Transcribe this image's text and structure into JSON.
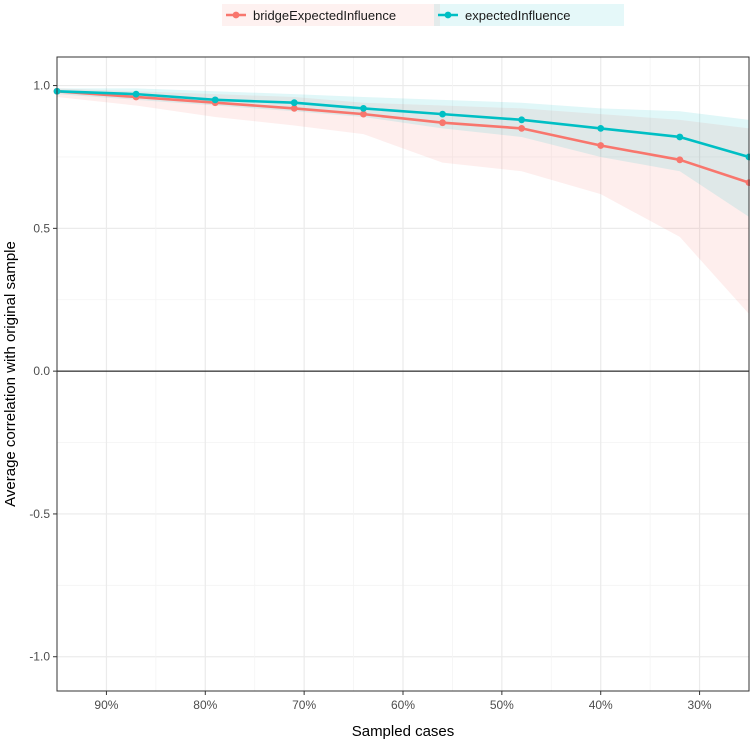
{
  "chart_data": {
    "type": "line",
    "xlabel": "Sampled cases",
    "ylabel": "Average correlation with original sample",
    "xlim": [
      0.95,
      0.25
    ],
    "ylim": [
      -1.12,
      1.1
    ],
    "x_ticks": [
      0.9,
      0.8,
      0.7,
      0.6,
      0.5,
      0.4,
      0.3
    ],
    "x_tick_labels": [
      "90%",
      "80%",
      "70%",
      "60%",
      "50%",
      "40%",
      "30%"
    ],
    "y_ticks": [
      1.0,
      0.5,
      0.0,
      -0.5,
      -1.0
    ],
    "y_tick_labels": [
      "1.0",
      "0.5",
      "0.0",
      "-0.5",
      "-1.0"
    ],
    "grid": true,
    "legend_position": "top",
    "reference_line_y": 0,
    "x": [
      0.95,
      0.87,
      0.79,
      0.71,
      0.64,
      0.56,
      0.48,
      0.4,
      0.32,
      0.25
    ],
    "series": [
      {
        "name": "bridgeExpectedInfluence",
        "color": "#F8766D",
        "values": [
          0.98,
          0.96,
          0.94,
          0.92,
          0.9,
          0.87,
          0.85,
          0.79,
          0.74,
          0.66
        ],
        "lower": [
          0.96,
          0.93,
          0.89,
          0.86,
          0.83,
          0.73,
          0.7,
          0.62,
          0.47,
          0.2
        ],
        "upper": [
          0.99,
          0.98,
          0.97,
          0.96,
          0.94,
          0.93,
          0.92,
          0.9,
          0.88,
          0.85
        ]
      },
      {
        "name": "expectedInfluence",
        "color": "#00BFC4",
        "values": [
          0.98,
          0.97,
          0.95,
          0.94,
          0.92,
          0.9,
          0.88,
          0.85,
          0.82,
          0.75
        ],
        "lower": [
          0.97,
          0.95,
          0.93,
          0.91,
          0.89,
          0.85,
          0.82,
          0.75,
          0.7,
          0.54
        ],
        "upper": [
          0.99,
          0.99,
          0.98,
          0.97,
          0.96,
          0.95,
          0.94,
          0.92,
          0.91,
          0.88
        ]
      }
    ]
  }
}
